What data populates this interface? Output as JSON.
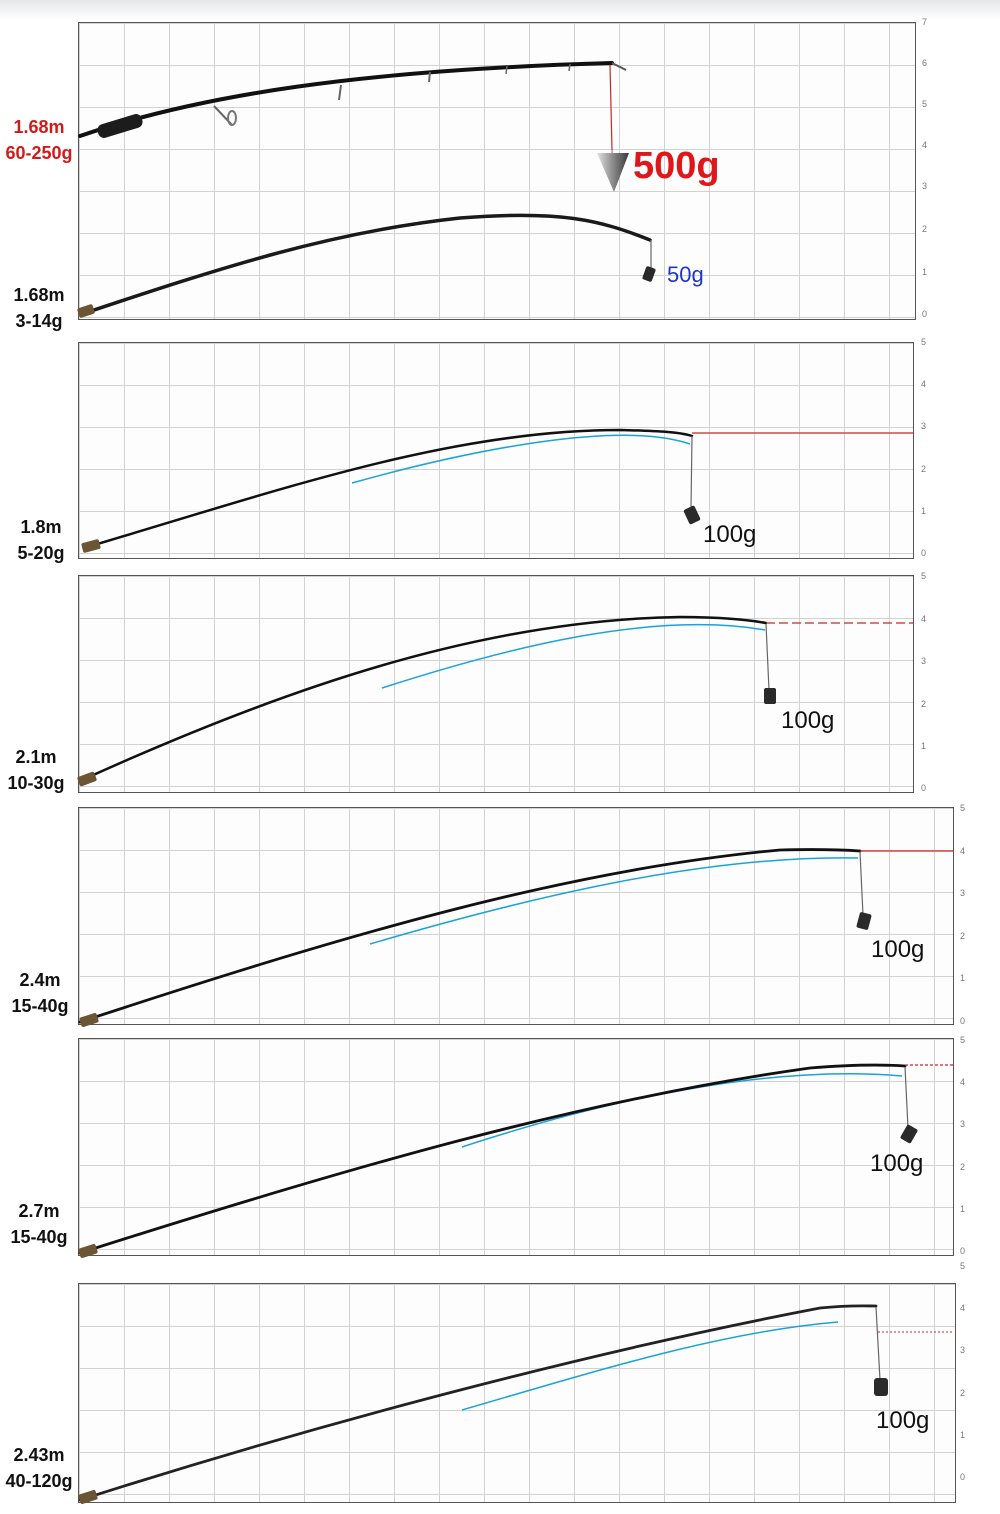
{
  "panels": [
    {
      "id": "p1",
      "ticks": [
        "7",
        "6",
        "5",
        "4",
        "3",
        "2",
        "1",
        "0"
      ],
      "rods": [
        {
          "length": "1.68m",
          "range": "60-250g",
          "label_color": "#d21a1a",
          "weight": "500g",
          "weight_color": "#e0161b"
        },
        {
          "length": "1.68m",
          "range": "3-14g",
          "label_color": "#111111",
          "weight": "50g",
          "weight_color": "#1d36c8"
        }
      ]
    },
    {
      "id": "p2",
      "ticks": [
        "5",
        "4",
        "3",
        "2",
        "1",
        "0"
      ],
      "length": "1.8m",
      "range": "5-20g",
      "weight": "100g"
    },
    {
      "id": "p3",
      "ticks": [
        "5",
        "4",
        "3",
        "2",
        "1",
        "0"
      ],
      "length": "2.1m",
      "range": "10-30g",
      "weight": "100g"
    },
    {
      "id": "p4",
      "ticks": [
        "5",
        "4",
        "3",
        "2",
        "1",
        "0"
      ],
      "length": "2.4m",
      "range": "15-40g",
      "weight": "100g"
    },
    {
      "id": "p5",
      "ticks": [
        "5",
        "4",
        "3",
        "2",
        "1",
        "0"
      ],
      "length": "2.7m",
      "range": "15-40g",
      "weight": "100g"
    },
    {
      "id": "p6",
      "ticks": [
        "5",
        "4",
        "3",
        "2",
        "1",
        "0"
      ],
      "length": "2.43m",
      "range": "40-120g",
      "weight": "100g"
    }
  ],
  "colors": {
    "rod": "#111111",
    "reference_curve": "#1aa3d9",
    "level_line": "#c62828",
    "grid": "#d2d2d2"
  }
}
